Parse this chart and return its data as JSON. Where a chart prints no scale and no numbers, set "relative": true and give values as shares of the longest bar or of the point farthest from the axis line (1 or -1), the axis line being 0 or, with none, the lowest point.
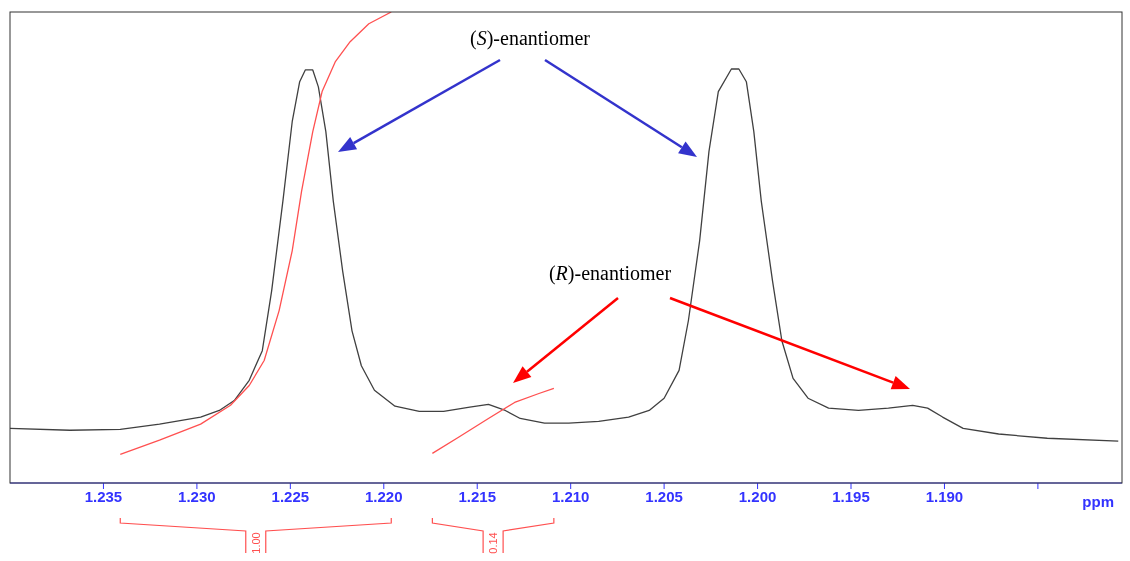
{
  "chart_data": {
    "type": "line",
    "relative": true,
    "xlabel": "ppm",
    "xlim": [
      1.24,
      1.1805
    ],
    "xticks": [
      1.235,
      {
        "value": 1.23,
        "label": "1.230"
      },
      1.225,
      {
        "value": 1.22,
        "label": "1.220"
      },
      1.215,
      {
        "value": 1.21,
        "label": "1.210"
      },
      1.205,
      {
        "value": 1.2,
        "label": "1.200"
      },
      1.195,
      {
        "value": 1.19,
        "label": "1.190"
      },
      {
        "value": 1.185,
        "label": null
      }
    ],
    "series": [
      {
        "color": "#404040",
        "x": [
          1.24,
          1.2368,
          1.2341,
          1.232,
          1.2298,
          1.2288,
          1.228,
          1.2272,
          1.2265,
          1.226,
          1.2254,
          1.2249,
          1.2245,
          1.2242,
          1.2238,
          1.2235,
          1.2231,
          1.2227,
          1.2222,
          1.2217,
          1.2212,
          1.2205,
          1.2194,
          1.2181,
          1.2168,
          1.2154,
          1.2144,
          1.2135,
          1.2127,
          1.2114,
          1.2101,
          1.2085,
          1.2069,
          1.2058,
          1.205,
          1.2042,
          1.2037,
          1.2031,
          1.2026,
          1.2021,
          1.2014,
          1.201,
          1.2006,
          1.2002,
          1.1998,
          1.1992,
          1.1987,
          1.1981,
          1.1973,
          1.1962,
          1.1946,
          1.193,
          1.1917,
          1.1909,
          1.1901,
          1.189,
          1.1871,
          1.1845,
          1.1807
        ],
        "values": [
          0.116,
          0.112,
          0.114,
          0.125,
          0.14,
          0.154,
          0.175,
          0.218,
          0.281,
          0.408,
          0.598,
          0.767,
          0.852,
          0.877,
          0.877,
          0.841,
          0.746,
          0.598,
          0.45,
          0.323,
          0.249,
          0.197,
          0.163,
          0.152,
          0.152,
          0.161,
          0.167,
          0.154,
          0.137,
          0.127,
          0.127,
          0.131,
          0.14,
          0.154,
          0.18,
          0.239,
          0.345,
          0.514,
          0.704,
          0.831,
          0.879,
          0.879,
          0.852,
          0.746,
          0.598,
          0.429,
          0.302,
          0.222,
          0.18,
          0.159,
          0.154,
          0.159,
          0.165,
          0.159,
          0.14,
          0.116,
          0.104,
          0.095,
          0.089
        ]
      },
      {
        "color": "#ff5050",
        "x": [
          1.2341,
          1.232,
          1.2298,
          1.2282,
          1.2272,
          1.2264,
          1.2256,
          1.2249,
          1.2244,
          1.2238,
          1.2233,
          1.2226,
          1.2218,
          1.2208,
          1.2196
        ],
        "values": [
          0.061,
          0.091,
          0.125,
          0.165,
          0.207,
          0.26,
          0.366,
          0.493,
          0.619,
          0.746,
          0.831,
          0.894,
          0.937,
          0.975,
          1
        ]
      },
      {
        "color": "#ff5050",
        "x": [
          1.2174,
          1.216,
          1.2144,
          1.213,
          1.2117,
          1.2109
        ],
        "values": [
          0.063,
          0.097,
          0.137,
          0.171,
          0.19,
          0.201
        ]
      }
    ],
    "annotations": [
      "(S)-enantiomer",
      "(R)-enantiomer",
      "1.00",
      "0.14"
    ]
  }
}
